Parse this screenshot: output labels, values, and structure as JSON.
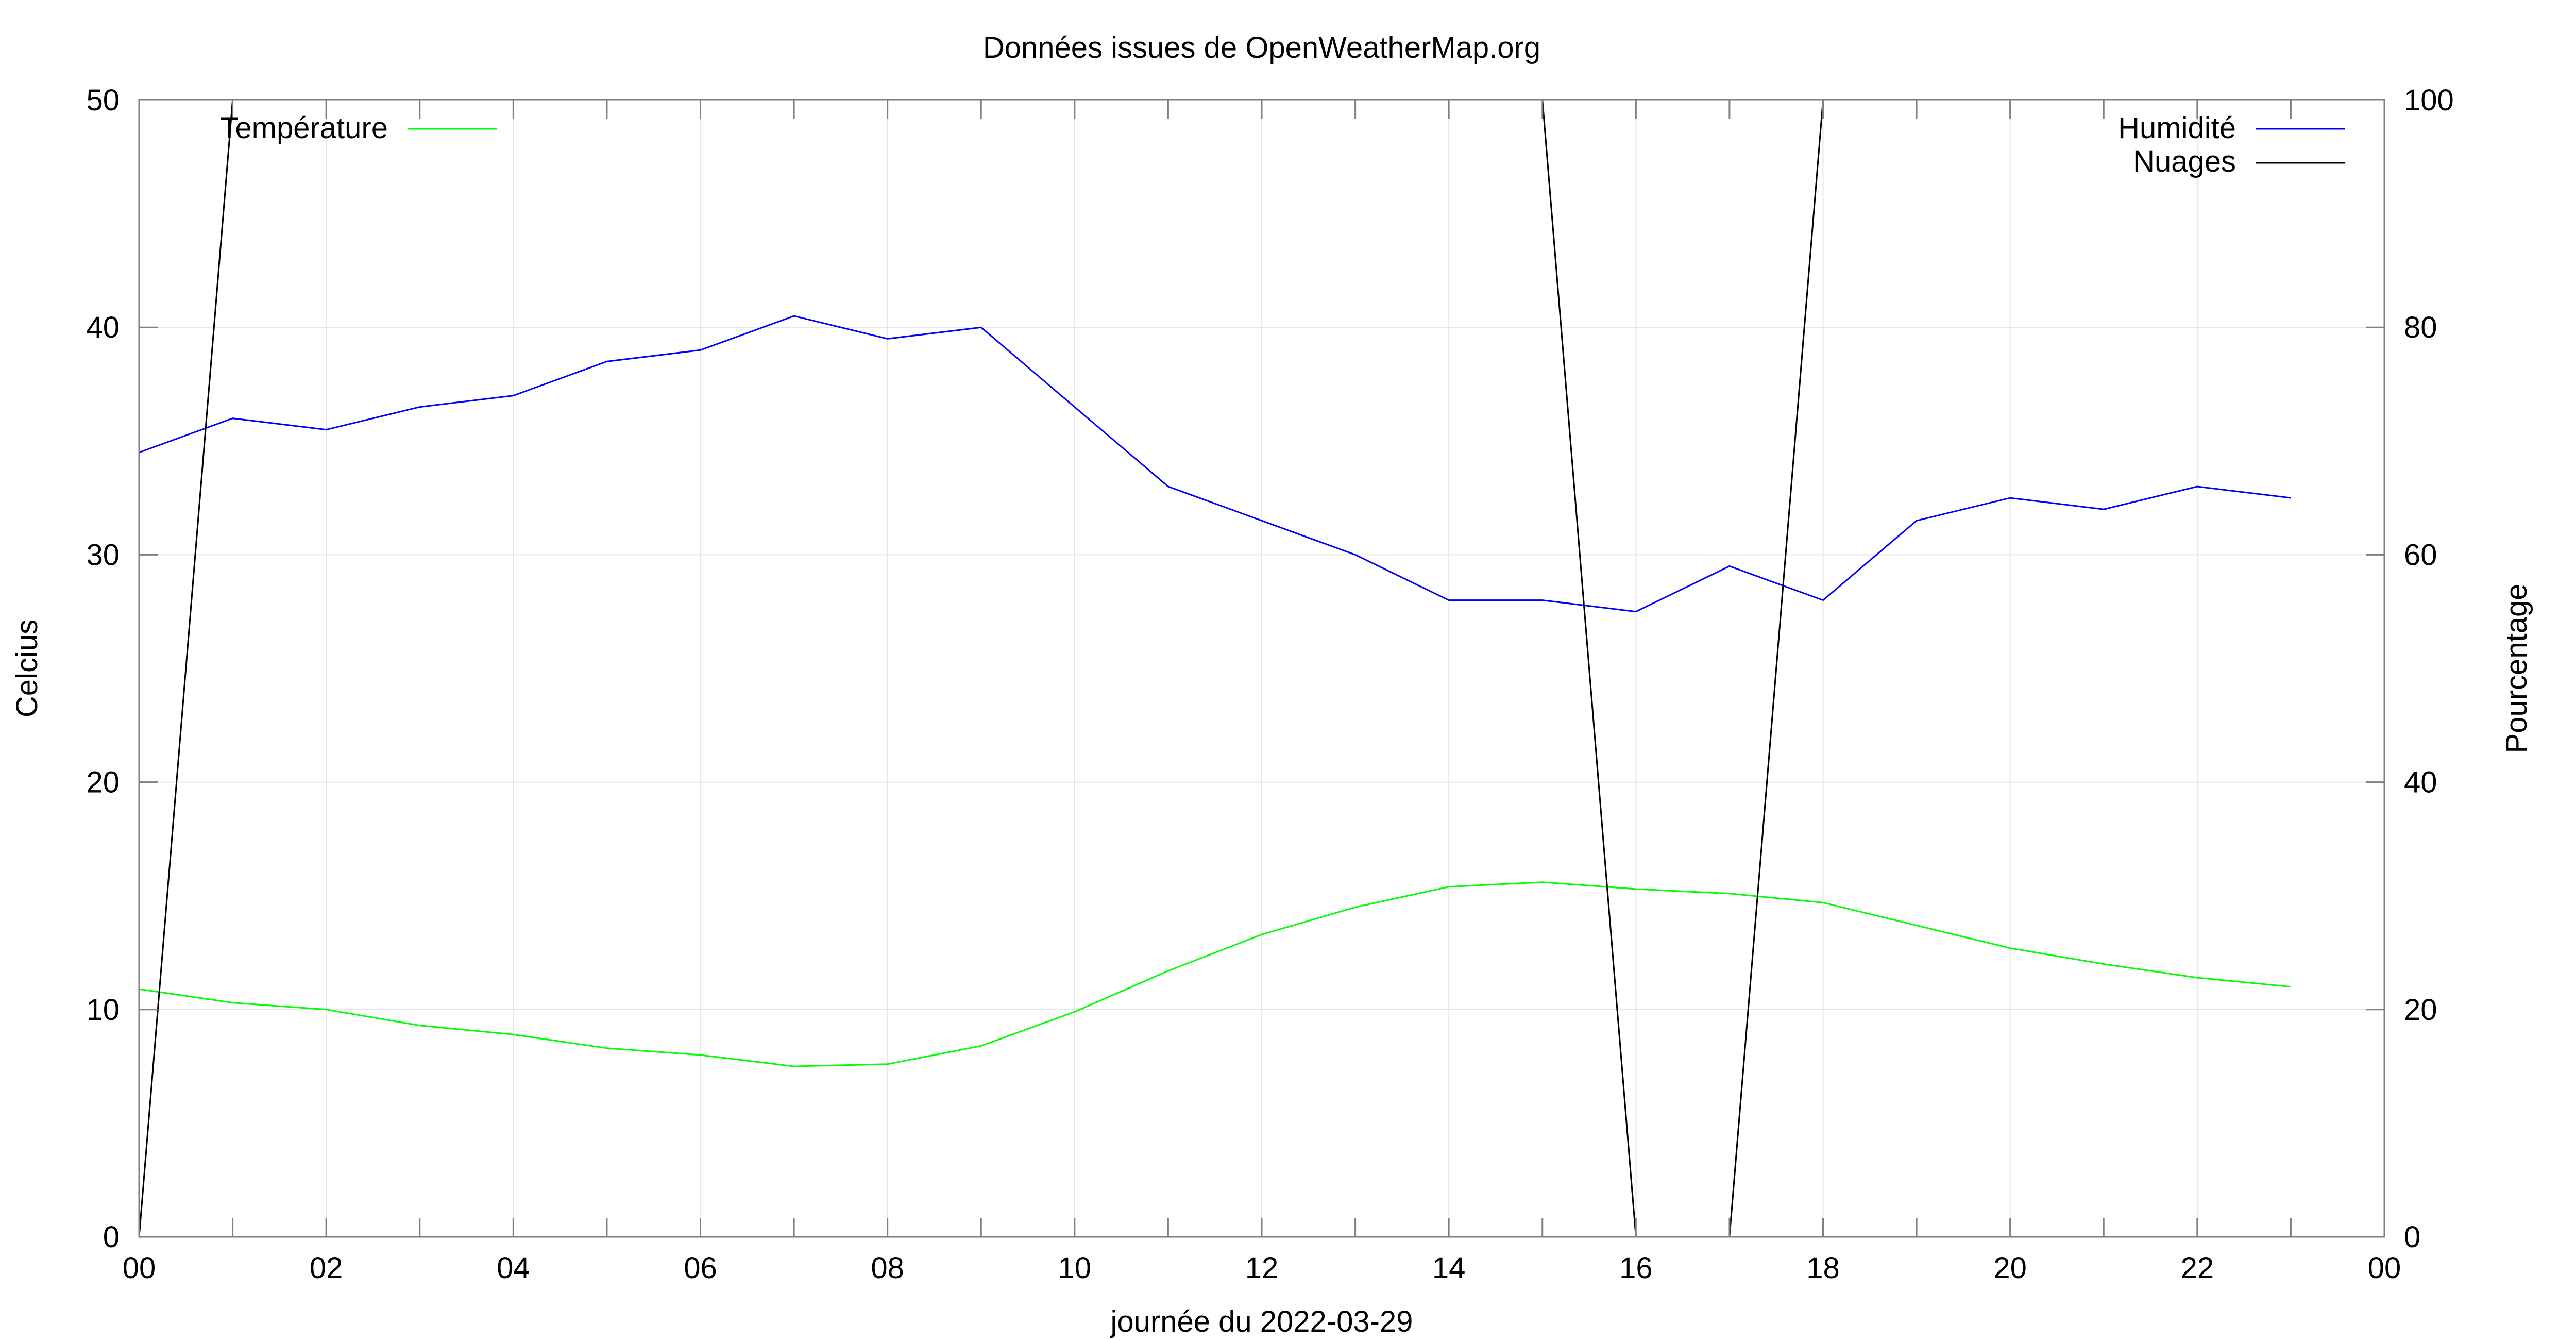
{
  "chart_data": {
    "type": "line",
    "title": "Données issues de OpenWeatherMap.org",
    "xlabel": "journée du 2022-03-29",
    "ylabel_left": "Celcius",
    "ylabel_right": "Pourcentage",
    "x_ticks": [
      "00",
      "02",
      "04",
      "06",
      "08",
      "10",
      "12",
      "14",
      "16",
      "18",
      "20",
      "22",
      "00"
    ],
    "x_range_hours": [
      0,
      24
    ],
    "y_left_range": [
      0,
      50
    ],
    "y_left_ticks": [
      "0",
      "10",
      "20",
      "30",
      "40",
      "50"
    ],
    "y_right_range": [
      0,
      100
    ],
    "y_right_ticks": [
      "0",
      "20",
      "40",
      "60",
      "80",
      "100"
    ],
    "grid": true,
    "legend_placement": "top (left and right)",
    "x": [
      0,
      1,
      2,
      3,
      4,
      5,
      6,
      7,
      8,
      9,
      10,
      11,
      12,
      13,
      14,
      15,
      16,
      17,
      18,
      19,
      20,
      21,
      22,
      23
    ],
    "series": [
      {
        "name": "Température",
        "axis": "left",
        "legend_position": "top-left",
        "color": "#00ff00",
        "values": [
          10.9,
          10.3,
          10.0,
          9.3,
          8.9,
          8.3,
          8.0,
          7.5,
          7.6,
          8.4,
          9.9,
          11.7,
          13.3,
          14.5,
          15.4,
          15.6,
          15.3,
          15.1,
          14.7,
          13.7,
          12.7,
          12.0,
          11.4,
          11.0
        ]
      },
      {
        "name": "Humidité",
        "axis": "right",
        "legend_position": "top-right",
        "color": "#0000ff",
        "values": [
          69,
          72,
          71,
          73,
          74,
          77,
          78,
          81,
          79,
          80,
          73,
          66,
          63,
          60,
          56,
          56,
          55,
          59,
          56,
          63,
          65,
          64,
          66,
          65
        ]
      },
      {
        "name": "Nuages",
        "axis": "right",
        "legend_position": "top-right",
        "color": "#000000",
        "values": [
          0,
          100,
          100,
          100,
          100,
          100,
          100,
          100,
          100,
          100,
          100,
          100,
          100,
          100,
          100,
          100,
          0,
          0,
          100,
          100,
          100,
          100,
          100,
          100
        ]
      }
    ]
  }
}
